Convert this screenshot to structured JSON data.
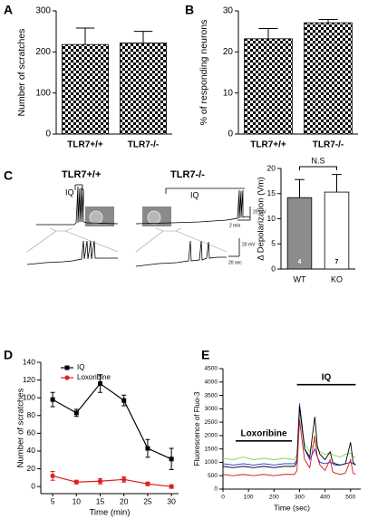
{
  "chart_data": [
    {
      "type": "bar",
      "panel": "A",
      "ylabel": "Number of scratches",
      "categories": [
        "TLR7+/+",
        "TLR7-/-"
      ],
      "values": [
        218,
        222
      ],
      "errors": [
        40,
        28
      ],
      "pattern": "checker",
      "color": "#000000",
      "ylim": [
        0,
        300
      ],
      "yticks": [
        0,
        100,
        200,
        300
      ]
    },
    {
      "type": "bar",
      "panel": "B",
      "ylabel": "% of responding neurons",
      "categories": [
        "TLR7+/+",
        "TLR7-/-"
      ],
      "values": [
        23.2,
        27.1
      ],
      "errors": [
        2.5,
        0.8
      ],
      "pattern": "checker",
      "color": "#000000",
      "ylim": [
        0,
        30
      ],
      "yticks": [
        0,
        10,
        20,
        30
      ]
    },
    {
      "type": "bar",
      "ylabel": "Δ Depolarization (Vm)",
      "categories": [
        "WT",
        "KO"
      ],
      "values": [
        14.2,
        15.3
      ],
      "errors": [
        3.6,
        3.5
      ],
      "colors": [
        "#8c8c8c",
        "#ffffff"
      ],
      "n": [
        4,
        7
      ],
      "annotation": "N.S",
      "ylim": [
        0,
        20
      ],
      "yticks": [
        0,
        5,
        10,
        15,
        20
      ]
    },
    {
      "type": "line",
      "panel": "D",
      "xlabel": "Time (min)",
      "ylabel": "Number of scratches",
      "x": [
        5,
        10,
        15,
        20,
        25,
        30
      ],
      "series": [
        {
          "name": "IQ",
          "color": "#000000",
          "marker": "square",
          "values": [
            98,
            83,
            116,
            97,
            43,
            31
          ],
          "errors": [
            8,
            4,
            10,
            6,
            10,
            12
          ]
        },
        {
          "name": "Loxoribine",
          "color": "#e0201b",
          "marker": "circle",
          "values": [
            12,
            5,
            6,
            8,
            3,
            0
          ],
          "errors": [
            5,
            2,
            3,
            3,
            2,
            2
          ]
        }
      ],
      "legend": "upper left",
      "xlim": [
        2.5,
        31.5
      ],
      "xticks": [
        5,
        10,
        15,
        20,
        25,
        30
      ],
      "ylim": [
        -8,
        140
      ],
      "yticks": [
        0,
        20,
        40,
        60,
        80,
        100,
        120,
        140
      ]
    },
    {
      "type": "trace",
      "panel": "E",
      "xlabel": "Time (sec)",
      "ylabel": "Fluorescence of Fluo-3",
      "x": [
        0,
        40,
        80,
        120,
        160,
        200,
        240,
        280,
        290,
        300,
        310,
        320,
        340,
        360,
        370,
        380,
        400,
        420,
        430,
        440,
        460,
        480,
        500,
        510,
        520
      ],
      "series": [
        {
          "color": "#7ed957",
          "values": [
            1150,
            1100,
            1200,
            1100,
            1150,
            1100,
            1150,
            1100,
            1300,
            2900,
            2200,
            1700,
            1400,
            1800,
            1500,
            1400,
            1300,
            1350,
            1300,
            1250,
            1200,
            1300,
            1350,
            1200,
            1200
          ]
        },
        {
          "color": "#1f2fd6",
          "values": [
            950,
            900,
            950,
            900,
            950,
            900,
            950,
            950,
            1100,
            3200,
            2400,
            1500,
            1100,
            1500,
            1200,
            1000,
            950,
            1000,
            950,
            900,
            900,
            950,
            1000,
            950,
            900
          ]
        },
        {
          "color": "#000000",
          "values": [
            850,
            800,
            850,
            800,
            850,
            800,
            850,
            850,
            1000,
            3100,
            2300,
            1500,
            1200,
            2700,
            1600,
            1300,
            1100,
            1400,
            1000,
            950,
            900,
            950,
            1750,
            1000,
            900
          ]
        },
        {
          "color": "#d11a1a",
          "values": [
            550,
            500,
            550,
            500,
            550,
            500,
            550,
            550,
            700,
            2600,
            1800,
            1100,
            800,
            2000,
            1200,
            900,
            700,
            1100,
            650,
            600,
            550,
            600,
            1100,
            600,
            550
          ]
        }
      ],
      "stimuli": [
        {
          "label": "Loxoribine",
          "start": 50,
          "end": 270,
          "level": 1800
        },
        {
          "label": "IQ",
          "start": 290,
          "end": 520,
          "level": 3900
        }
      ],
      "xlim": [
        0,
        540
      ],
      "xticks": [
        0,
        100,
        200,
        300,
        400,
        500
      ],
      "ylim": [
        0,
        4500
      ],
      "yticks": [
        0,
        500,
        1000,
        1500,
        2000,
        2500,
        3000,
        3500,
        4000,
        4500
      ]
    }
  ],
  "trace_panel": {
    "panel": "C",
    "genotypes": [
      "TLR7+/+",
      "TLR7-/-"
    ],
    "stimulus": [
      "IQ",
      "IQ"
    ],
    "scale_top": [
      "20 mV",
      "2 min"
    ],
    "scale_bottom": [
      "20 mV",
      "20 sec"
    ]
  }
}
